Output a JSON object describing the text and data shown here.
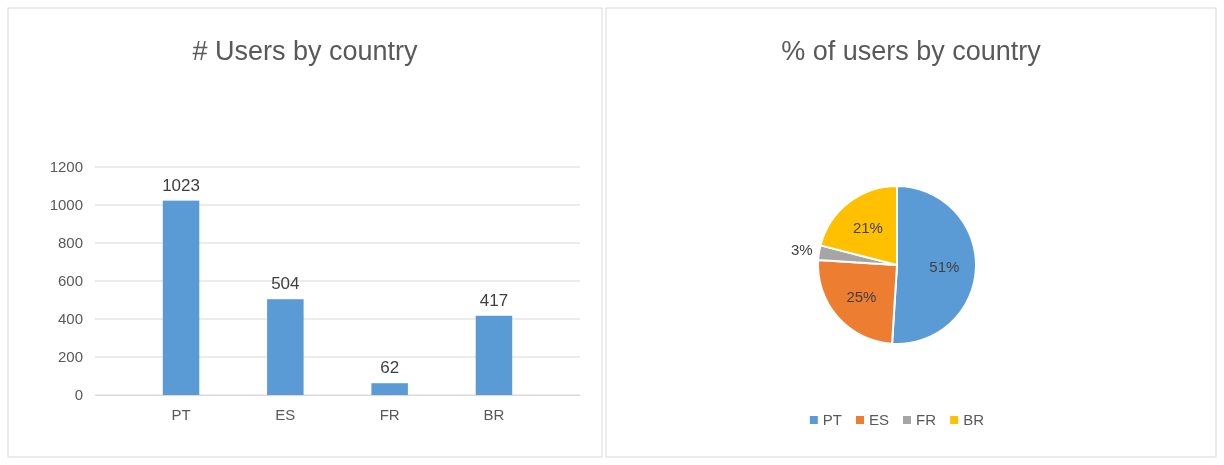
{
  "chart_data": [
    {
      "type": "bar",
      "title": "# Users by country",
      "categories": [
        "PT",
        "ES",
        "FR",
        "BR"
      ],
      "values": [
        1023,
        504,
        62,
        417
      ],
      "color": "#5b9bd5",
      "ylim": [
        0,
        1200
      ],
      "yticks": [
        0,
        200,
        400,
        600,
        800,
        1000,
        1200
      ],
      "grid": "y",
      "data_labels": true
    },
    {
      "type": "pie",
      "title": "% of users by country",
      "categories": [
        "PT",
        "ES",
        "FR",
        "BR"
      ],
      "values": [
        51,
        25,
        3,
        21
      ],
      "colors": [
        "#5b9bd5",
        "#ed7d31",
        "#a5a5a5",
        "#ffc000"
      ],
      "value_labels": [
        "51%",
        "25%",
        "3%",
        "21%"
      ],
      "legend": "bottom"
    }
  ]
}
